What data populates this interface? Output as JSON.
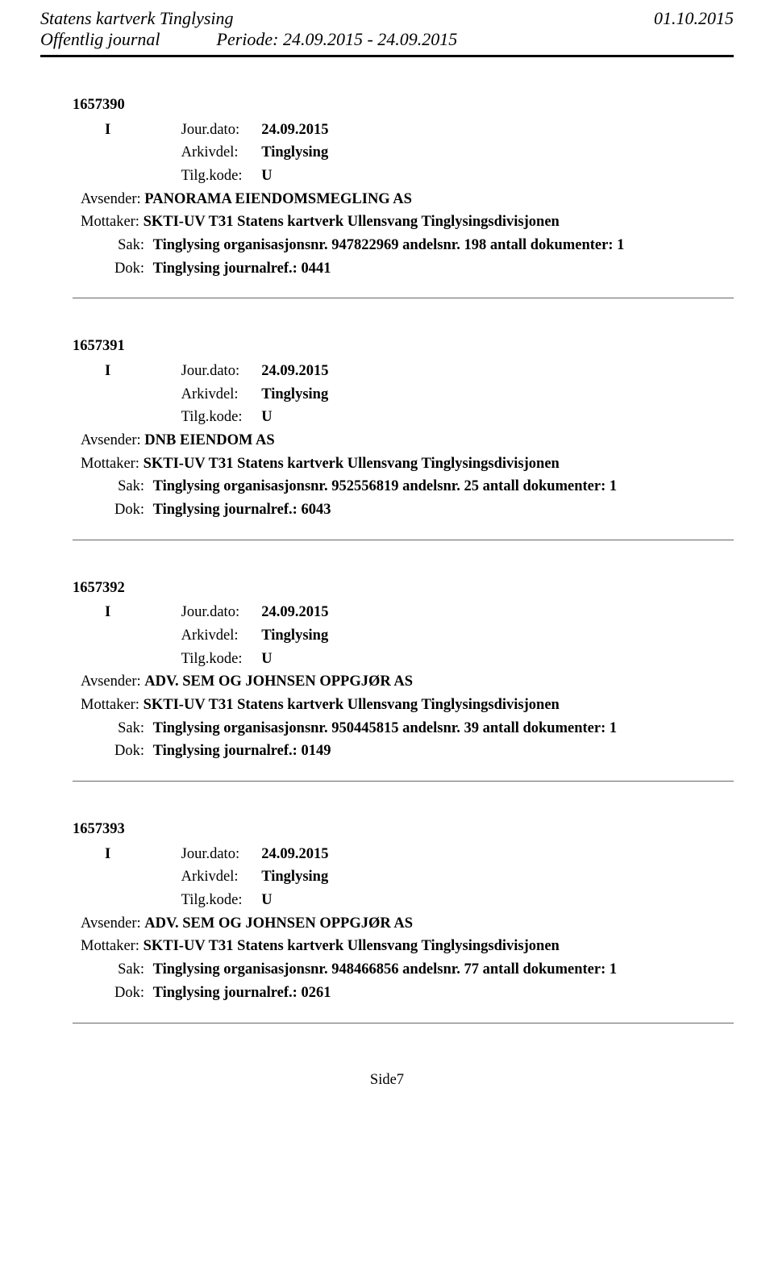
{
  "header": {
    "title1": "Statens kartverk Tinglysing",
    "date": "01.10.2015",
    "title2": "Offentlig journal",
    "period": "Periode: 24.09.2015 - 24.09.2015"
  },
  "entries": [
    {
      "id": "1657390",
      "type": "I",
      "jour_label": "Jour.dato:",
      "jour_val": "24.09.2015",
      "arkiv_label": "Arkivdel:",
      "arkiv_val": "Tinglysing",
      "tilg_label": "Tilg.kode:",
      "tilg_val": "U",
      "avs_label": "Avsender:",
      "avs_val": "PANORAMA EIENDOMSMEGLING AS",
      "mot_label": "Mottaker:",
      "mot_val": "SKTI-UV T31 Statens kartverk Ullensvang Tinglysingsdivisjonen",
      "sak_label": "Sak:",
      "sak_val": "Tinglysing organisasjonsnr. 947822969 andelsnr. 198 antall dokumenter: 1",
      "dok_label": "Dok:",
      "dok_val": "Tinglysing journalref.: 0441"
    },
    {
      "id": "1657391",
      "type": "I",
      "jour_label": "Jour.dato:",
      "jour_val": "24.09.2015",
      "arkiv_label": "Arkivdel:",
      "arkiv_val": "Tinglysing",
      "tilg_label": "Tilg.kode:",
      "tilg_val": "U",
      "avs_label": "Avsender:",
      "avs_val": "DNB EIENDOM AS",
      "mot_label": "Mottaker:",
      "mot_val": "SKTI-UV T31 Statens kartverk Ullensvang Tinglysingsdivisjonen",
      "sak_label": "Sak:",
      "sak_val": "Tinglysing organisasjonsnr. 952556819 andelsnr. 25 antall dokumenter: 1",
      "dok_label": "Dok:",
      "dok_val": "Tinglysing journalref.: 6043"
    },
    {
      "id": "1657392",
      "type": "I",
      "jour_label": "Jour.dato:",
      "jour_val": "24.09.2015",
      "arkiv_label": "Arkivdel:",
      "arkiv_val": "Tinglysing",
      "tilg_label": "Tilg.kode:",
      "tilg_val": "U",
      "avs_label": "Avsender:",
      "avs_val": "ADV. SEM OG JOHNSEN OPPGJØR AS",
      "mot_label": "Mottaker:",
      "mot_val": "SKTI-UV T31 Statens kartverk Ullensvang Tinglysingsdivisjonen",
      "sak_label": "Sak:",
      "sak_val": "Tinglysing organisasjonsnr. 950445815 andelsnr. 39 antall dokumenter: 1",
      "dok_label": "Dok:",
      "dok_val": "Tinglysing journalref.: 0149"
    },
    {
      "id": "1657393",
      "type": "I",
      "jour_label": "Jour.dato:",
      "jour_val": "24.09.2015",
      "arkiv_label": "Arkivdel:",
      "arkiv_val": "Tinglysing",
      "tilg_label": "Tilg.kode:",
      "tilg_val": "U",
      "avs_label": "Avsender:",
      "avs_val": "ADV. SEM OG JOHNSEN OPPGJØR AS",
      "mot_label": "Mottaker:",
      "mot_val": "SKTI-UV T31 Statens kartverk Ullensvang Tinglysingsdivisjonen",
      "sak_label": "Sak:",
      "sak_val": "Tinglysing organisasjonsnr. 948466856 andelsnr. 77 antall dokumenter: 1",
      "dok_label": "Dok:",
      "dok_val": "Tinglysing journalref.: 0261"
    }
  ],
  "footer": {
    "page": "Side7"
  }
}
